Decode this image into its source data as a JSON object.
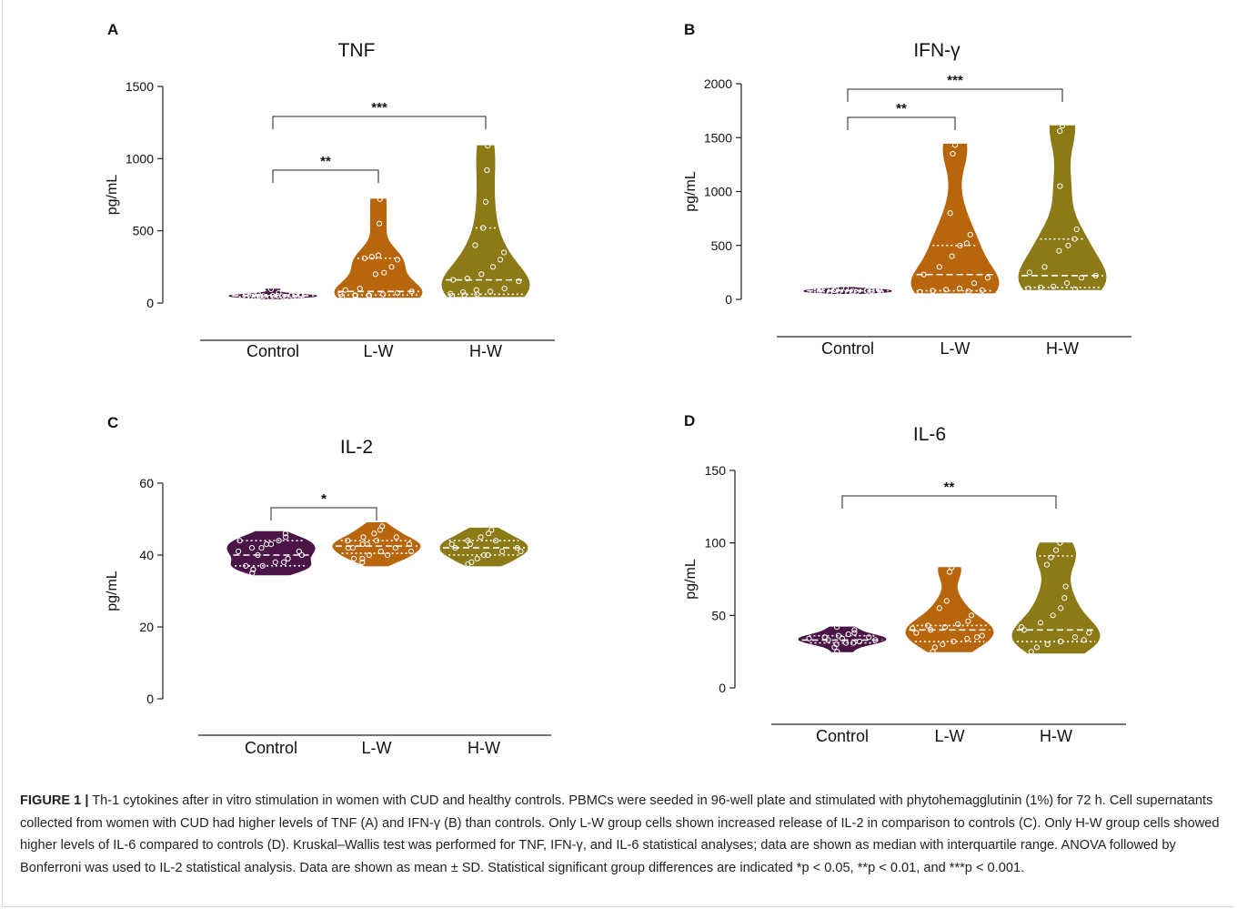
{
  "chart_data": [
    {
      "panel": "A",
      "title": "TNF",
      "type": "violin",
      "ylabel": "pg/mL",
      "ylim": [
        0,
        1500
      ],
      "yticks": [
        0,
        500,
        1000,
        1500
      ],
      "categories": [
        "Control",
        "L-W",
        "H-W"
      ],
      "colors": [
        "#4a1446",
        "#b8660c",
        "#8b7a16"
      ],
      "series": [
        {
          "name": "Control",
          "range": [
            30,
            95
          ],
          "median": 50,
          "q1": 42,
          "q3": 58,
          "points": [
            40,
            45,
            48,
            50,
            52,
            55,
            60,
            42,
            38,
            47,
            53,
            58,
            62,
            45,
            50,
            44,
            70,
            95
          ]
        },
        {
          "name": "L-W",
          "range": [
            40,
            720
          ],
          "median": 80,
          "q1": 55,
          "q3": 310,
          "points": [
            45,
            50,
            55,
            60,
            70,
            80,
            90,
            100,
            200,
            210,
            250,
            300,
            310,
            320,
            330,
            550,
            720,
            60,
            55,
            48
          ]
        },
        {
          "name": "H-W",
          "range": [
            45,
            1090
          ],
          "median": 160,
          "q1": 60,
          "q3": 520,
          "points": [
            50,
            55,
            60,
            80,
            100,
            150,
            160,
            170,
            200,
            250,
            300,
            350,
            400,
            520,
            700,
            920,
            1090,
            65,
            75,
            90
          ]
        }
      ],
      "significance": [
        {
          "from": "Control",
          "to": "L-W",
          "label": "**"
        },
        {
          "from": "Control",
          "to": "H-W",
          "label": "***"
        }
      ]
    },
    {
      "panel": "B",
      "title": "IFN-γ",
      "type": "violin",
      "ylabel": "pg/mL",
      "ylim": [
        0,
        2000
      ],
      "yticks": [
        0,
        500,
        1000,
        1500,
        2000
      ],
      "categories": [
        "Control",
        "L-W",
        "H-W"
      ],
      "colors": [
        "#4a1446",
        "#b8660c",
        "#8b7a16"
      ],
      "series": [
        {
          "name": "Control",
          "range": [
            55,
            110
          ],
          "median": 80,
          "q1": 70,
          "q3": 90,
          "points": [
            60,
            65,
            70,
            75,
            80,
            85,
            90,
            95,
            100,
            70,
            80,
            90,
            75,
            85,
            65
          ]
        },
        {
          "name": "L-W",
          "range": [
            60,
            1440
          ],
          "median": 230,
          "q1": 80,
          "q3": 500,
          "points": [
            70,
            80,
            90,
            100,
            150,
            200,
            230,
            300,
            400,
            500,
            520,
            600,
            800,
            1350,
            1430,
            75,
            85
          ]
        },
        {
          "name": "H-W",
          "range": [
            90,
            1610
          ],
          "median": 220,
          "q1": 110,
          "q3": 560,
          "points": [
            100,
            110,
            120,
            150,
            200,
            220,
            250,
            300,
            450,
            500,
            560,
            650,
            1050,
            1560,
            1610,
            95
          ]
        }
      ],
      "significance": [
        {
          "from": "Control",
          "to": "L-W",
          "label": "**"
        },
        {
          "from": "Control",
          "to": "H-W",
          "label": "***"
        }
      ]
    },
    {
      "panel": "C",
      "title": "IL-2",
      "type": "violin",
      "ylabel": "pg/mL",
      "ylim": [
        0,
        60
      ],
      "yticks": [
        0,
        20,
        40,
        60
      ],
      "categories": [
        "Control",
        "L-W",
        "H-W"
      ],
      "colors": [
        "#4a1446",
        "#b8660c",
        "#8b7a16"
      ],
      "series": [
        {
          "name": "Control",
          "range": [
            34.5,
            46.5
          ],
          "median": 40,
          "q1": 37,
          "q3": 44,
          "points": [
            35,
            36,
            37,
            38,
            39,
            40,
            41,
            42,
            43,
            44,
            45,
            46,
            37,
            40,
            43,
            38,
            41,
            44,
            36,
            42
          ]
        },
        {
          "name": "L-W",
          "range": [
            37,
            49
          ],
          "median": 42.5,
          "q1": 40.5,
          "q3": 44,
          "points": [
            38,
            39,
            40,
            41,
            42,
            43,
            44,
            45,
            46,
            47,
            48,
            41,
            42,
            43,
            44,
            40,
            45,
            39,
            42,
            43
          ]
        },
        {
          "name": "H-W",
          "range": [
            37,
            47.5
          ],
          "median": 42,
          "q1": 40,
          "q3": 44,
          "points": [
            37.5,
            38,
            39,
            40,
            41,
            42,
            43,
            44,
            45,
            46,
            47,
            41,
            42,
            43,
            40,
            44
          ]
        }
      ],
      "significance": [
        {
          "from": "Control",
          "to": "L-W",
          "label": "*"
        }
      ]
    },
    {
      "panel": "D",
      "title": "IL-6",
      "type": "violin",
      "ylabel": "pg/mL",
      "ylim": [
        0,
        150
      ],
      "yticks": [
        0,
        50,
        100,
        150
      ],
      "categories": [
        "Control",
        "L-W",
        "H-W"
      ],
      "colors": [
        "#4a1446",
        "#b8660c",
        "#8b7a16"
      ],
      "series": [
        {
          "name": "Control",
          "range": [
            25,
            42
          ],
          "median": 33,
          "q1": 31,
          "q3": 36,
          "points": [
            25,
            28,
            30,
            31,
            32,
            33,
            34,
            35,
            36,
            37,
            38,
            40,
            42,
            33,
            34,
            31,
            35
          ]
        },
        {
          "name": "L-W",
          "range": [
            25,
            83
          ],
          "median": 40,
          "q1": 32,
          "q3": 43,
          "points": [
            25,
            28,
            30,
            32,
            34,
            36,
            38,
            40,
            42,
            44,
            46,
            50,
            55,
            60,
            80,
            83,
            35,
            41,
            43
          ]
        },
        {
          "name": "H-W",
          "range": [
            24,
            100
          ],
          "median": 40,
          "q1": 32,
          "q3": 91,
          "points": [
            25,
            28,
            30,
            32,
            35,
            38,
            40,
            45,
            50,
            55,
            62,
            70,
            85,
            90,
            95,
            100,
            33,
            42
          ]
        }
      ],
      "significance": [
        {
          "from": "Control",
          "to": "H-W",
          "label": "**"
        }
      ]
    }
  ],
  "caption": {
    "label": "FIGURE 1 |",
    "text": "Th-1 cytokines after in vitro stimulation in women with CUD and healthy controls. PBMCs were seeded in 96-well plate and stimulated with phytohemagglutinin (1%) for 72 h. Cell supernatants collected from women with CUD had higher levels of TNF (A) and IFN-γ (B) than controls. Only L-W group cells shown increased release of IL-2 in comparison to controls (C). Only H-W group cells showed higher levels of IL-6 compared to controls (D). Kruskal–Wallis test was performed for TNF, IFN-γ, and IL-6 statistical analyses; data are shown as median with interquartile range. ANOVA followed by Bonferroni was used to IL-2 statistical analysis. Data are shown as mean ± SD. Statistical significant group differences are indicated *p < 0.05, **p < 0.01, and ***p < 0.001."
  }
}
